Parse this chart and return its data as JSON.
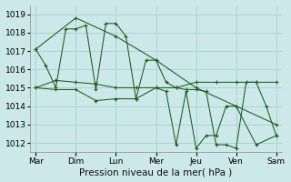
{
  "title": "Pression niveau de la mer( hPa )",
  "bg_color": "#cce8e8",
  "grid_color": "#aad4d4",
  "line_color": "#1a5c1a",
  "ylim": [
    1011.5,
    1019.5
  ],
  "yticks": [
    1012,
    1013,
    1014,
    1015,
    1016,
    1017,
    1018,
    1019
  ],
  "day_labels": [
    "Mar",
    "Dim",
    "Lun",
    "Mer",
    "Jeu",
    "Ven",
    "Sam"
  ],
  "day_positions": [
    0,
    1,
    2,
    3,
    4,
    5,
    6
  ],
  "series": [
    {
      "x": [
        0.0,
        0.25,
        0.5,
        0.75,
        1.0,
        1.25,
        1.5,
        1.75,
        2.0,
        2.25,
        2.5,
        2.75,
        3.0,
        3.25,
        3.5,
        3.75,
        4.0,
        4.25,
        4.5,
        4.75,
        5.0,
        5.25,
        5.5,
        5.75,
        6.0
      ],
      "y": [
        1017.1,
        1016.2,
        1015.0,
        1018.2,
        1018.2,
        1018.4,
        1014.9,
        1018.5,
        1018.5,
        1017.8,
        1014.4,
        1016.5,
        1016.5,
        1015.3,
        1015.0,
        1014.9,
        1014.9,
        1014.8,
        1011.9,
        1011.9,
        1011.7,
        1015.3,
        1015.3,
        1014.0,
        1012.4
      ]
    },
    {
      "x": [
        0.0,
        0.5,
        1.0,
        1.5,
        2.0,
        2.5,
        3.0,
        3.5,
        4.0,
        4.5,
        5.0,
        5.5,
        6.0
      ],
      "y": [
        1015.0,
        1015.4,
        1015.3,
        1015.2,
        1015.0,
        1015.0,
        1015.0,
        1015.0,
        1015.3,
        1015.3,
        1015.3,
        1015.3,
        1015.3
      ]
    },
    {
      "x": [
        0.0,
        1.0,
        2.0,
        3.0,
        4.0,
        5.0,
        6.0
      ],
      "y": [
        1017.1,
        1018.8,
        1017.8,
        1016.5,
        1015.0,
        1014.0,
        1013.0
      ]
    },
    {
      "x": [
        0.0,
        0.5,
        1.0,
        1.5,
        2.0,
        2.5,
        3.0,
        3.25,
        3.5,
        3.75,
        4.0,
        4.25,
        4.5,
        4.75,
        5.0,
        5.5,
        6.0
      ],
      "y": [
        1015.0,
        1014.9,
        1014.9,
        1014.3,
        1014.4,
        1014.4,
        1015.0,
        1014.8,
        1011.9,
        1014.8,
        1011.7,
        1012.4,
        1012.4,
        1014.0,
        1014.0,
        1011.9,
        1012.4
      ]
    }
  ]
}
